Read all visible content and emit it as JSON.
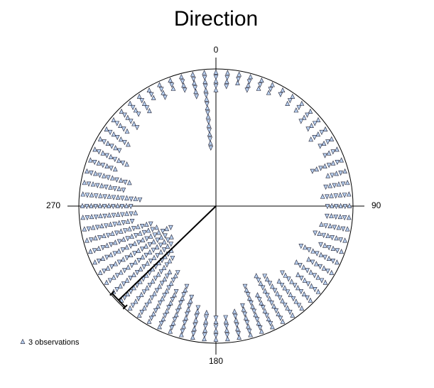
{
  "chart_data": {
    "type": "circular-dot",
    "title": "Direction",
    "angle_ticks": [
      0,
      90,
      180,
      270
    ],
    "legend": "3 observations",
    "color": "#b8d0f0",
    "bin_angles": [
      0,
      5,
      10,
      15,
      20,
      25,
      30,
      35,
      40,
      45,
      50,
      55,
      60,
      65,
      70,
      75,
      80,
      85,
      90,
      95,
      100,
      105,
      110,
      115,
      120,
      125,
      130,
      135,
      140,
      145,
      150,
      155,
      160,
      165,
      170,
      175,
      180,
      185,
      190,
      195,
      200,
      205,
      210,
      215,
      220,
      225,
      230,
      235,
      240,
      245,
      250,
      255,
      260,
      265,
      270,
      275,
      280,
      285,
      290,
      295,
      300,
      305,
      310,
      315,
      320,
      325,
      330,
      335,
      340,
      345,
      350,
      355
    ],
    "symbol_counts": [
      5,
      4,
      3,
      4,
      3,
      3,
      2,
      3,
      3,
      4,
      4,
      5,
      4,
      4,
      8,
      5,
      6,
      7,
      6,
      6,
      7,
      8,
      6,
      10,
      7,
      9,
      7,
      10,
      9,
      12,
      13,
      9,
      12,
      8,
      7,
      6,
      6,
      7,
      8,
      10,
      12,
      10,
      14,
      13,
      16,
      17,
      18,
      19,
      18,
      20,
      17,
      16,
      12,
      13,
      12,
      14,
      10,
      11,
      7,
      9,
      6,
      7,
      5,
      6,
      4,
      5,
      3,
      4,
      3,
      4,
      6,
      18
    ],
    "mean_direction": 226,
    "confidence_interval": 4
  }
}
